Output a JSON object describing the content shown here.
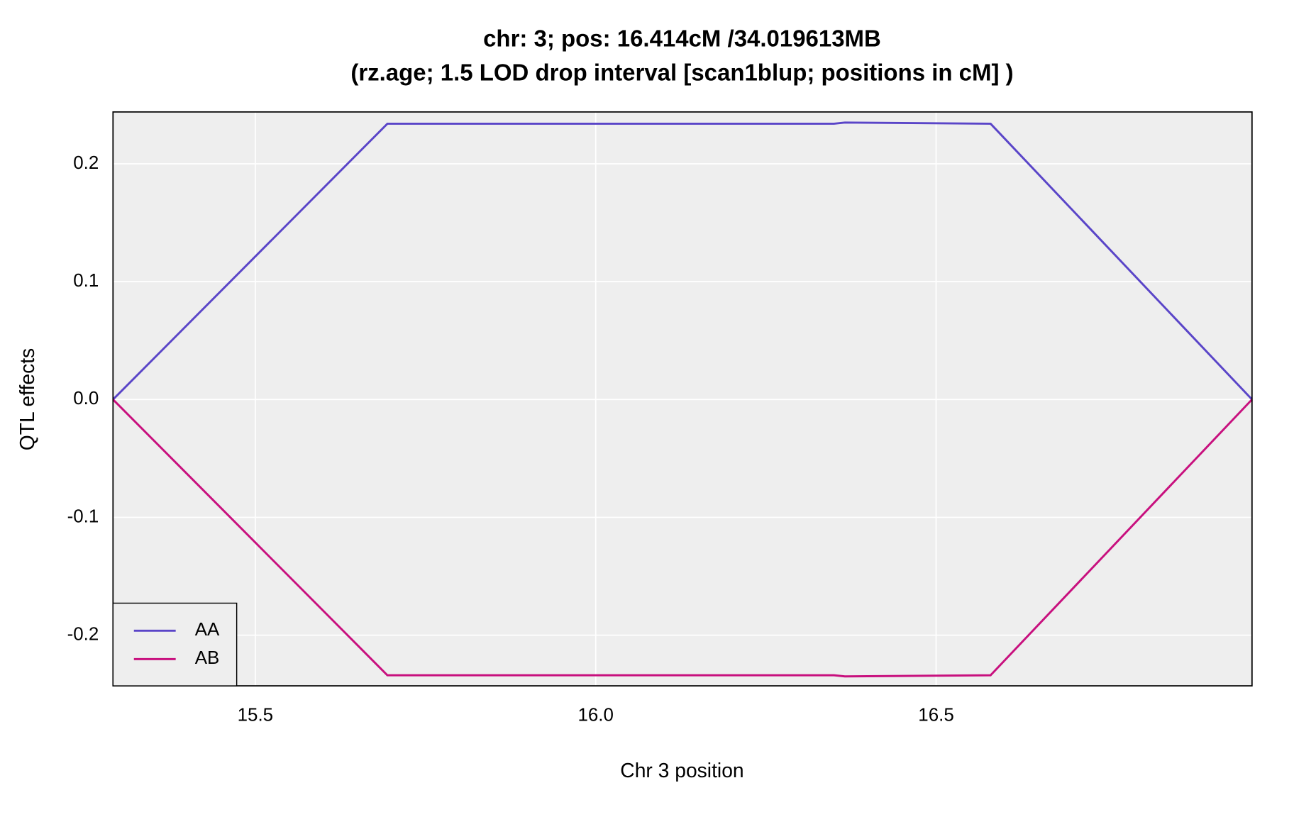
{
  "chart_data": {
    "type": "line",
    "title": "chr: 3; pos: 16.414cM /34.019613MB",
    "subtitle": "(rz.age; 1.5 LOD drop interval [scan1blup; positions in cM] )",
    "x_label": "Chr 3 position",
    "y_label": "QTL effects",
    "x": [
      15.291,
      15.694,
      16.35,
      16.366,
      16.58,
      16.964
    ],
    "series": [
      {
        "name": "AA",
        "color": "#5a45c8",
        "values": [
          0,
          0.234,
          0.234,
          0.235,
          0.234,
          0
        ]
      },
      {
        "name": "AB",
        "color": "#c8107e",
        "values": [
          0,
          -0.234,
          -0.234,
          -0.235,
          -0.234,
          0
        ]
      }
    ],
    "xlim": [
      15.291,
      16.964
    ],
    "ylim": [
      -0.243,
      0.244
    ],
    "xticks": [
      15.5,
      {
        "value": 16.0,
        "label": "16.0"
      },
      16.5
    ],
    "yticks": [
      {
        "value": -0.2,
        "label": "-0.2"
      },
      {
        "value": -0.1,
        "label": "-0.1"
      },
      {
        "value": 0.0,
        "label": "0.0"
      },
      0.1,
      0.2
    ],
    "grid": true,
    "legend_position": "bottomleft"
  }
}
